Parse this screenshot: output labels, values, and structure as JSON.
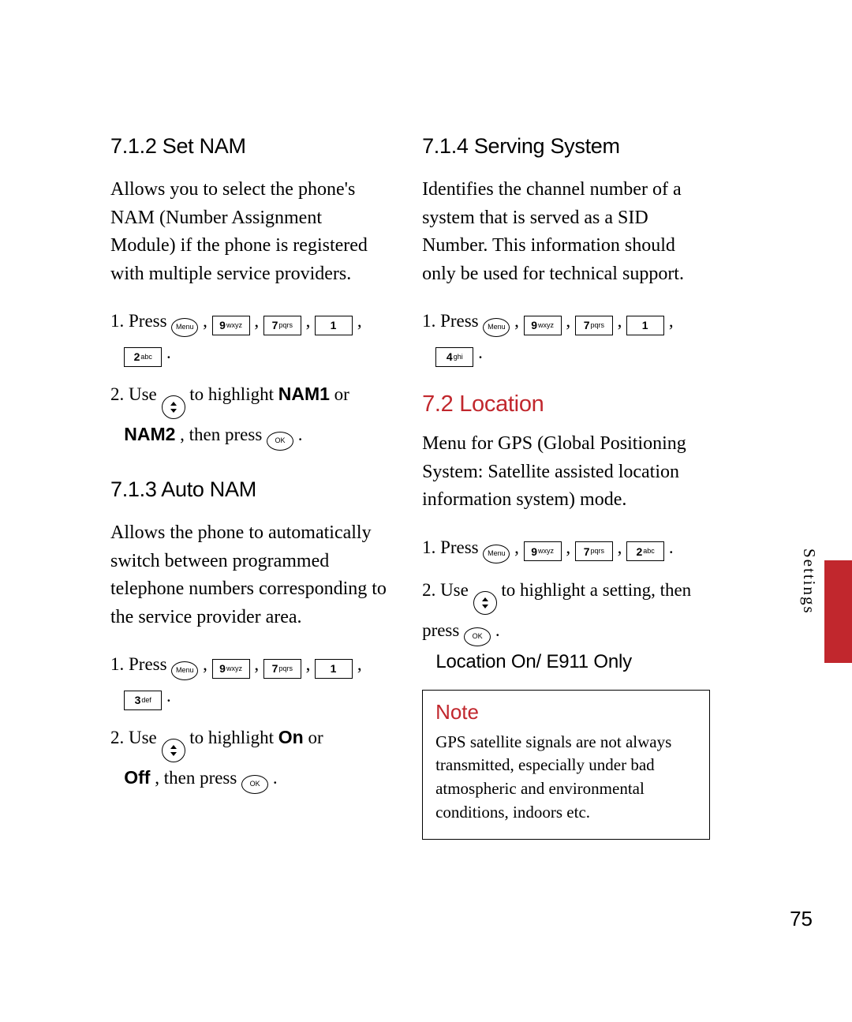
{
  "colors": {
    "accent": "#c1272d",
    "text": "#000000",
    "bg": "#ffffff",
    "border": "#000000"
  },
  "fonts": {
    "heading": "Arial",
    "body": "Georgia",
    "body_size_pt": 24,
    "heading_size_pt": 27,
    "section_size_pt": 29,
    "note_body_pt": 21
  },
  "page_number": "75",
  "side_label": "Settings",
  "keys": {
    "menu": "Menu",
    "ok": "OK",
    "k9": {
      "num": "9",
      "sub": "wxyz"
    },
    "k7": {
      "num": "7",
      "sub": "pqrs"
    },
    "k1": {
      "num": "1",
      "sub": ""
    },
    "k2": {
      "num": "2",
      "sub": "abc"
    },
    "k3": {
      "num": "3",
      "sub": "def"
    },
    "k4": {
      "num": "4",
      "sub": "ghi"
    }
  },
  "left": {
    "s712": {
      "heading": "7.1.2 Set NAM",
      "body": "Allows you to select the phone's NAM (Number Assignment Module) if the phone is registered with multiple service providers.",
      "step1_a": "1. Press ",
      "step1_b": " , ",
      "step1_c": " , ",
      "step1_d": " , ",
      "step1_e": " ,",
      "step1_f": " .",
      "step2_a": "2. Use ",
      "step2_b": " to highlight ",
      "step2_nam1": "NAM1",
      "step2_or": " or ",
      "step2_nam2": "NAM2",
      "step2_then": ", then press ",
      "step2_end": " ."
    },
    "s713": {
      "heading": "7.1.3 Auto NAM",
      "body": "Allows the phone to automatically switch between programmed telephone numbers corresponding to the service provider area.",
      "step1_a": "1. Press ",
      "step1_b": " , ",
      "step1_c": " , ",
      "step1_d": " , ",
      "step1_e": " ,",
      "step1_f": " .",
      "step2_a": "2. Use ",
      "step2_b": " to highlight ",
      "step2_on": "On",
      "step2_or": " or ",
      "step2_off": "Off",
      "step2_then": ", then press ",
      "step2_end": " ."
    }
  },
  "right": {
    "s714": {
      "heading": "7.1.4 Serving System",
      "body": "Identifies the channel number of a system that is served as a SID Number. This information should only be used for technical support.",
      "step1_a": "1. Press ",
      "step1_b": " , ",
      "step1_c": " , ",
      "step1_d": " , ",
      "step1_e": " ,",
      "step1_f": " ."
    },
    "s72": {
      "heading": "7.2 Location",
      "body": "Menu for GPS (Global Positioning System: Satellite assisted location information system) mode.",
      "step1_a": "1. Press ",
      "step1_b": " , ",
      "step1_c": " , ",
      "step1_d": " , ",
      "step1_e": " .",
      "step2_a": "2. Use ",
      "step2_b": " to highlight a setting, then press ",
      "step2_end": " .",
      "options": "Location On/ E911 Only"
    },
    "note": {
      "title": "Note",
      "body": "GPS satellite signals are not always transmitted, especially under bad atmospheric and environmental conditions, indoors etc."
    }
  }
}
